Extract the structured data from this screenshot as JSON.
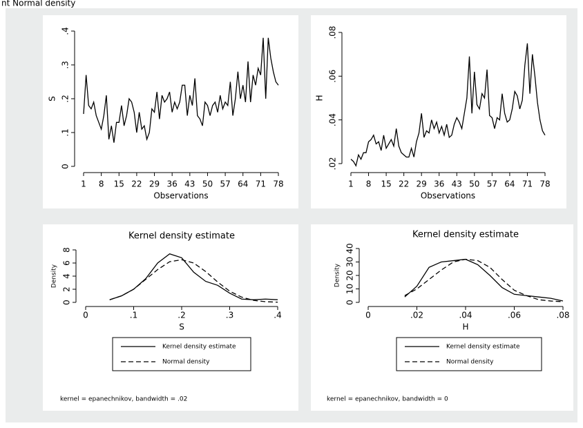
{
  "caption": "nt Normal density",
  "chart_data": [
    {
      "type": "line",
      "xlabel": "Observations",
      "ylabel": "S",
      "x": [
        1,
        2,
        3,
        4,
        5,
        6,
        7,
        8,
        9,
        10,
        11,
        12,
        13,
        14,
        15,
        16,
        17,
        18,
        19,
        20,
        21,
        22,
        23,
        24,
        25,
        26,
        27,
        28,
        29,
        30,
        31,
        32,
        33,
        34,
        35,
        36,
        37,
        38,
        39,
        40,
        41,
        42,
        43,
        44,
        45,
        46,
        47,
        48,
        49,
        50,
        51,
        52,
        53,
        54,
        55,
        56,
        57,
        58,
        59,
        60,
        61,
        62,
        63,
        64,
        65,
        66,
        67,
        68,
        69,
        70,
        71,
        72,
        73,
        74,
        75,
        76,
        77,
        78
      ],
      "series": [
        {
          "color": "#000000",
          "dashed": false,
          "values": [
            0.155,
            0.27,
            0.18,
            0.17,
            0.19,
            0.15,
            0.13,
            0.11,
            0.15,
            0.21,
            0.08,
            0.12,
            0.07,
            0.13,
            0.13,
            0.18,
            0.12,
            0.15,
            0.2,
            0.19,
            0.16,
            0.1,
            0.16,
            0.11,
            0.12,
            0.08,
            0.1,
            0.17,
            0.16,
            0.22,
            0.14,
            0.21,
            0.19,
            0.2,
            0.22,
            0.16,
            0.19,
            0.17,
            0.19,
            0.24,
            0.24,
            0.15,
            0.21,
            0.18,
            0.26,
            0.15,
            0.14,
            0.12,
            0.19,
            0.18,
            0.15,
            0.18,
            0.19,
            0.16,
            0.21,
            0.17,
            0.19,
            0.18,
            0.25,
            0.15,
            0.2,
            0.28,
            0.2,
            0.24,
            0.19,
            0.31,
            0.19,
            0.27,
            0.24,
            0.29,
            0.27,
            0.38,
            0.2,
            0.38,
            0.32,
            0.28,
            0.25,
            0.24
          ]
        }
      ],
      "xlim": [
        1,
        78
      ],
      "xticks": [
        1,
        8,
        15,
        22,
        29,
        36,
        43,
        50,
        57,
        64,
        71,
        78
      ],
      "ylim": [
        0,
        0.4
      ],
      "yticks": [
        0,
        {
          "value": 0.1,
          "label": ".1"
        },
        {
          "value": 0.2,
          "label": ".2"
        },
        {
          "value": 0.3,
          "label": ".3"
        },
        {
          "value": 0.4,
          "label": ".4"
        }
      ]
    },
    {
      "type": "line",
      "xlabel": "Observations",
      "ylabel": "H",
      "x": [
        1,
        2,
        3,
        4,
        5,
        6,
        7,
        8,
        9,
        10,
        11,
        12,
        13,
        14,
        15,
        16,
        17,
        18,
        19,
        20,
        21,
        22,
        23,
        24,
        25,
        26,
        27,
        28,
        29,
        30,
        31,
        32,
        33,
        34,
        35,
        36,
        37,
        38,
        39,
        40,
        41,
        42,
        43,
        44,
        45,
        46,
        47,
        48,
        49,
        50,
        51,
        52,
        53,
        54,
        55,
        56,
        57,
        58,
        59,
        60,
        61,
        62,
        63,
        64,
        65,
        66,
        67,
        68,
        69,
        70,
        71,
        72,
        73,
        74,
        75,
        76,
        77,
        78
      ],
      "series": [
        {
          "color": "#000000",
          "dashed": false,
          "values": [
            0.022,
            0.021,
            0.019,
            0.024,
            0.022,
            0.025,
            0.025,
            0.03,
            0.031,
            0.033,
            0.029,
            0.03,
            0.026,
            0.033,
            0.027,
            0.029,
            0.031,
            0.028,
            0.036,
            0.028,
            0.025,
            0.024,
            0.023,
            0.023,
            0.027,
            0.023,
            0.03,
            0.034,
            0.043,
            0.032,
            0.035,
            0.034,
            0.04,
            0.036,
            0.039,
            0.034,
            0.037,
            0.033,
            0.038,
            0.032,
            0.033,
            0.038,
            0.041,
            0.039,
            0.036,
            0.043,
            0.05,
            0.069,
            0.043,
            0.062,
            0.047,
            0.045,
            0.052,
            0.05,
            0.063,
            0.042,
            0.041,
            0.036,
            0.041,
            0.04,
            0.052,
            0.043,
            0.039,
            0.04,
            0.045,
            0.053,
            0.051,
            0.045,
            0.049,
            0.065,
            0.075,
            0.052,
            0.07,
            0.06,
            0.048,
            0.04,
            0.035,
            0.033
          ]
        }
      ],
      "xlim": [
        1,
        78
      ],
      "xticks": [
        1,
        8,
        15,
        22,
        29,
        36,
        43,
        50,
        57,
        64,
        71,
        78
      ],
      "ylim": [
        0.02,
        0.08
      ],
      "yticks": [
        {
          "value": 0.02,
          "label": ".02"
        },
        {
          "value": 0.04,
          "label": ".04"
        },
        {
          "value": 0.06,
          "label": ".06"
        },
        {
          "value": 0.08,
          "label": ".08"
        }
      ]
    },
    {
      "type": "line",
      "title": "Kernel density estimate",
      "xlabel": "S",
      "ylabel": "Density",
      "note": "kernel = epanechnikov, bandwidth = .02",
      "x": [
        0.05,
        0.075,
        0.1,
        0.125,
        0.15,
        0.175,
        0.2,
        0.225,
        0.25,
        0.275,
        0.3,
        0.325,
        0.35,
        0.375,
        0.4
      ],
      "series": [
        {
          "name": "Kernel density estimate",
          "color": "#000000",
          "dashed": false,
          "values": [
            0.4,
            1.0,
            2.0,
            3.6,
            6.0,
            7.4,
            6.8,
            4.6,
            3.2,
            2.6,
            1.4,
            0.5,
            0.4,
            0.5,
            0.4
          ]
        },
        {
          "name": "Normal density",
          "color": "#000000",
          "dashed": true,
          "values": [
            0.4,
            1.0,
            2.0,
            3.5,
            5.0,
            6.2,
            6.5,
            6.0,
            4.7,
            3.1,
            1.7,
            0.8,
            0.3,
            0.1,
            0.03
          ]
        }
      ],
      "xlim": [
        0,
        0.4
      ],
      "xticks": [
        0,
        {
          "value": 0.1,
          "label": ".1"
        },
        {
          "value": 0.2,
          "label": ".2"
        },
        {
          "value": 0.3,
          "label": ".3"
        },
        {
          "value": 0.4,
          "label": ".4"
        }
      ],
      "ylim": [
        0,
        8
      ],
      "yticks": [
        0,
        2,
        4,
        6,
        8
      ]
    },
    {
      "type": "line",
      "title": "Kernel density estimate",
      "xlabel": "H",
      "ylabel": "Density",
      "note": "kernel = epanechnikov, bandwidth = 0",
      "x": [
        0.015,
        0.02,
        0.025,
        0.03,
        0.035,
        0.04,
        0.045,
        0.05,
        0.055,
        0.06,
        0.065,
        0.07,
        0.075,
        0.08
      ],
      "series": [
        {
          "name": "Kernel density estimate",
          "color": "#000000",
          "dashed": false,
          "values": [
            4,
            12,
            26,
            30,
            31,
            32,
            28,
            20,
            11,
            6,
            5,
            4,
            3,
            1
          ]
        },
        {
          "name": "Normal density",
          "color": "#000000",
          "dashed": true,
          "values": [
            5,
            10,
            17,
            24,
            30,
            32,
            31,
            26,
            17,
            9,
            5,
            2,
            1,
            0.5
          ]
        }
      ],
      "xlim": [
        0,
        0.08
      ],
      "xticks": [
        0,
        {
          "value": 0.02,
          "label": ".02"
        },
        {
          "value": 0.04,
          "label": ".04"
        },
        {
          "value": 0.06,
          "label": ".06"
        },
        {
          "value": 0.08,
          "label": ".08"
        }
      ],
      "ylim": [
        0,
        40
      ],
      "yticks": [
        0,
        10,
        20,
        30,
        40
      ]
    }
  ]
}
